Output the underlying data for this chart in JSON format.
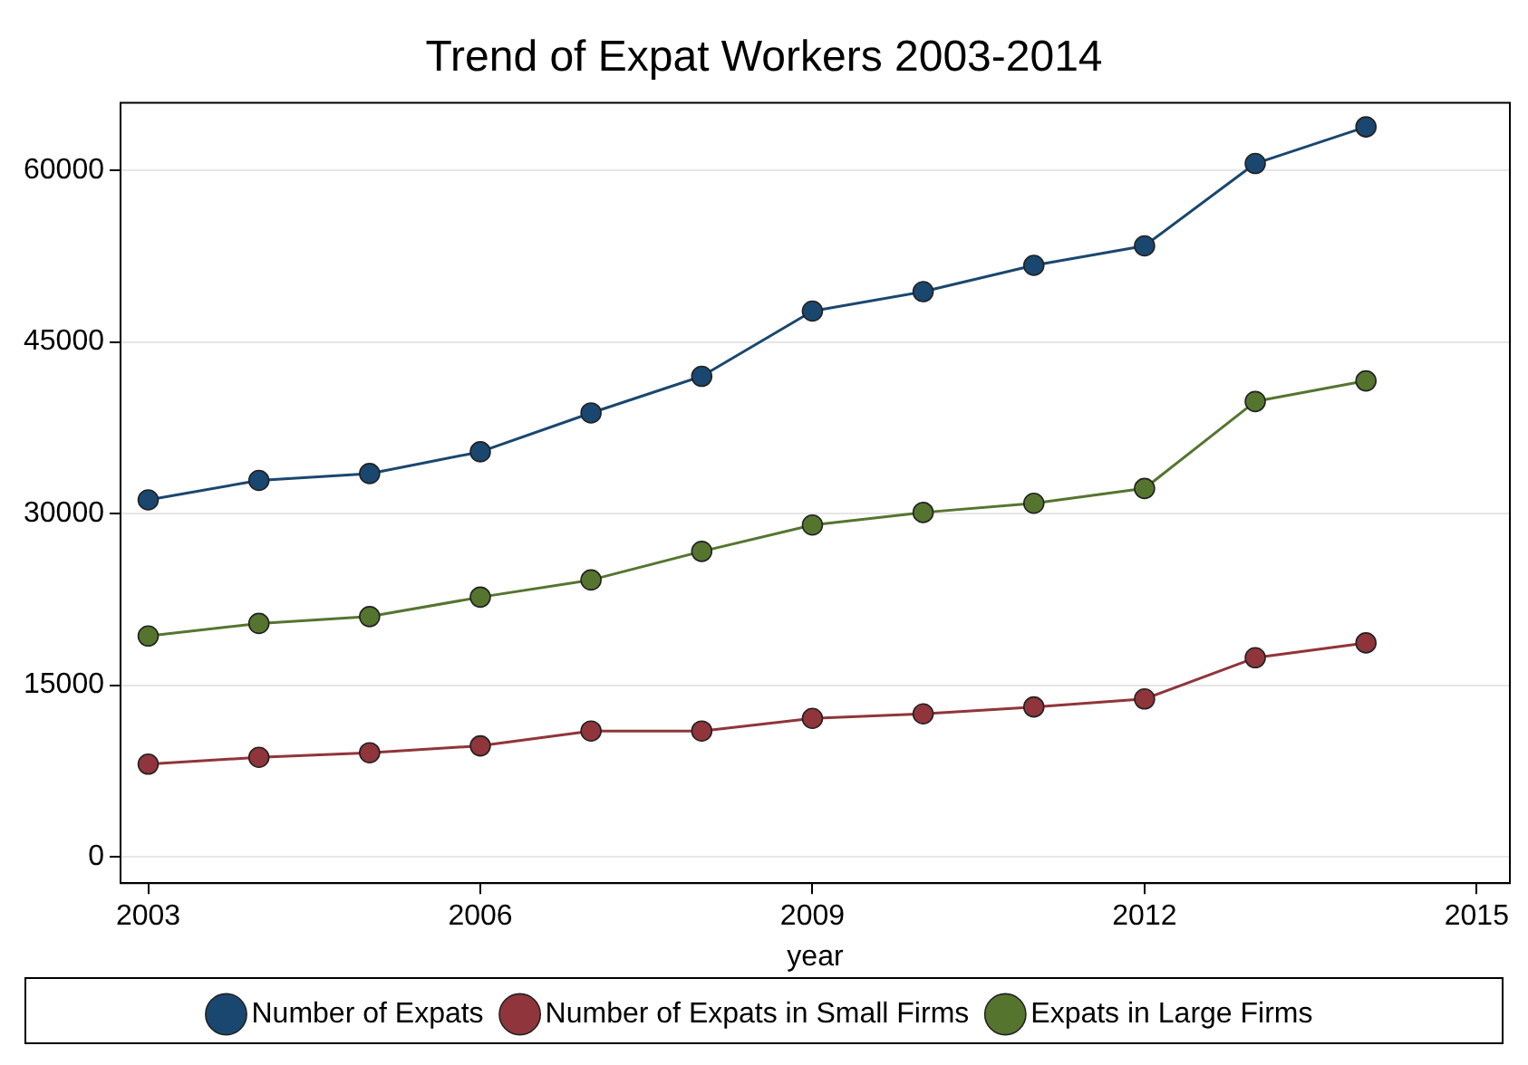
{
  "chart_data": {
    "type": "line",
    "title": "Trend of Expat Workers 2003-2014",
    "xlabel": "year",
    "x": [
      2003,
      2004,
      2005,
      2006,
      2007,
      2008,
      2009,
      2010,
      2011,
      2012,
      2013,
      2014
    ],
    "series": [
      {
        "name": "Number of Expats",
        "color": "#1a476f",
        "values": [
          31200,
          32900,
          33500,
          35400,
          38800,
          42000,
          47700,
          49400,
          51700,
          53400,
          60600,
          63800
        ]
      },
      {
        "name": "Number of Expats in Small Firms",
        "color": "#90353b",
        "values": [
          8100,
          8700,
          9100,
          9700,
          11000,
          11000,
          12100,
          12500,
          13100,
          13800,
          17400,
          18700
        ]
      },
      {
        "name": "Expats in Large Firms",
        "color": "#55752f",
        "values": [
          19300,
          20400,
          21000,
          22700,
          24200,
          26700,
          29000,
          30100,
          30900,
          32200,
          39800,
          41600
        ]
      }
    ],
    "xlim": [
      2002.75,
      2015.3
    ],
    "xticks": [
      2003,
      2006,
      2009,
      2012,
      2015
    ],
    "ylim": [
      -2300,
      65900
    ],
    "yticks": [
      0,
      15000,
      30000,
      45000,
      60000
    ],
    "grid": "y",
    "legend": "bottom",
    "marker": "circle",
    "line_style": "solid"
  }
}
